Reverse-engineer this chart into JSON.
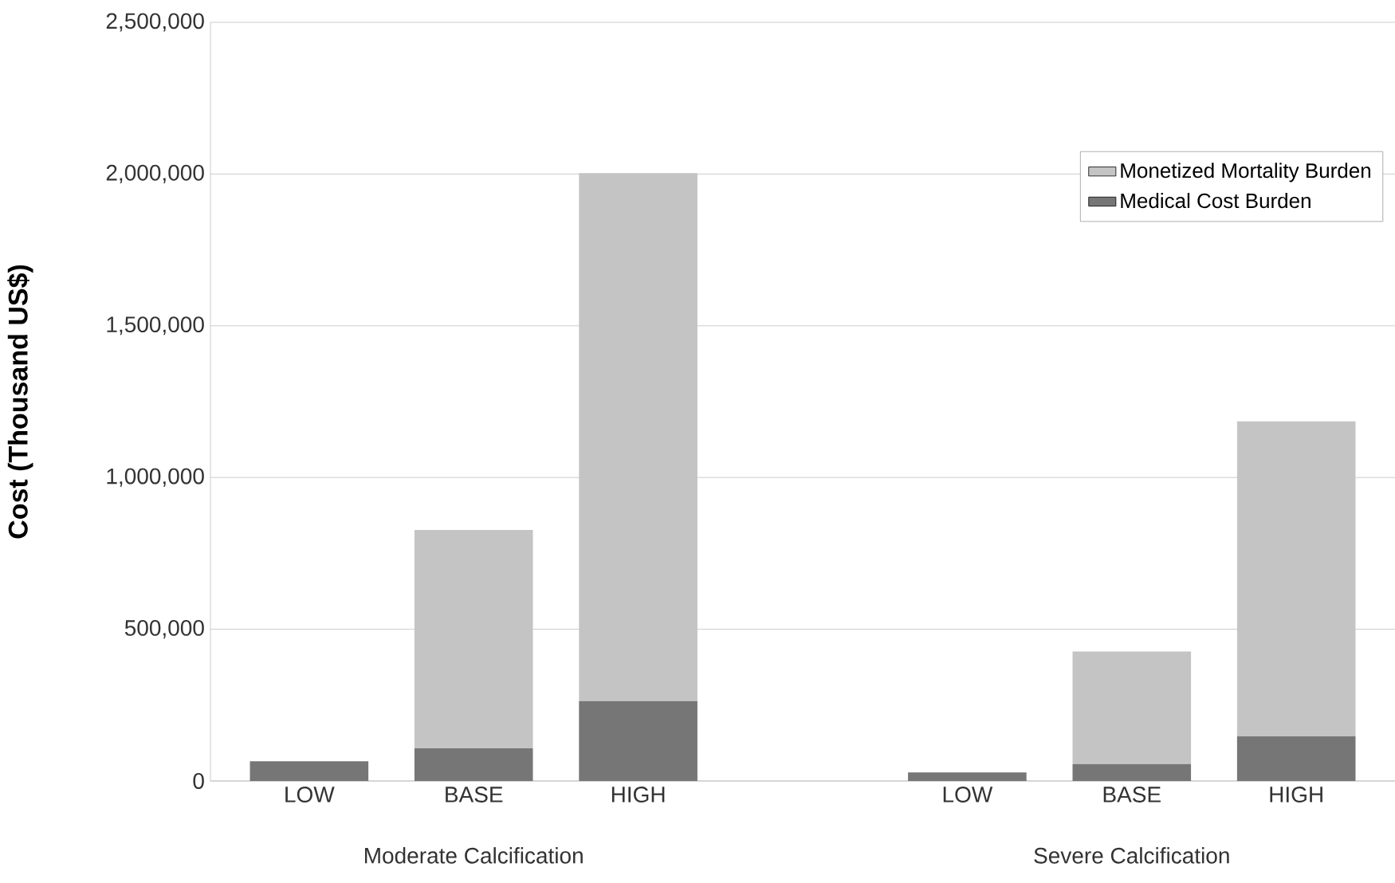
{
  "chart_data": {
    "type": "bar",
    "stacked": true,
    "ylabel": "**Cost (Thousand US$)**",
    "categories": [
      "LOW",
      "BASE",
      "HIGH",
      null,
      "LOW",
      "BASE",
      "HIGH"
    ],
    "series": [
      {
        "name": "Medical Cost Burden",
        "color": "#767676",
        "values": [
          65000,
          108000,
          263000,
          null,
          28000,
          56000,
          147000
        ]
      },
      {
        "name": "Monetized Mortality Burden",
        "color": "#c4c4c4",
        "values": [
          0,
          719000,
          1740000,
          null,
          0,
          371000,
          1038000
        ]
      }
    ],
    "ylim": [
      0,
      2500000
    ],
    "yticks": [
      {
        "value": 0,
        "label": "0"
      },
      {
        "value": 500000,
        "label": "500,000"
      },
      {
        "value": 1000000,
        "label": "1,000,000"
      },
      {
        "value": 1500000,
        "label": "1,500,000"
      },
      {
        "value": 2000000,
        "label": "2,000,000"
      },
      {
        "value": 2500000,
        "label": "2,500,000"
      }
    ],
    "grid": "y",
    "legend": "top right",
    "annotations": [
      "Moderate Calcification",
      "Severe Calcification"
    ]
  }
}
